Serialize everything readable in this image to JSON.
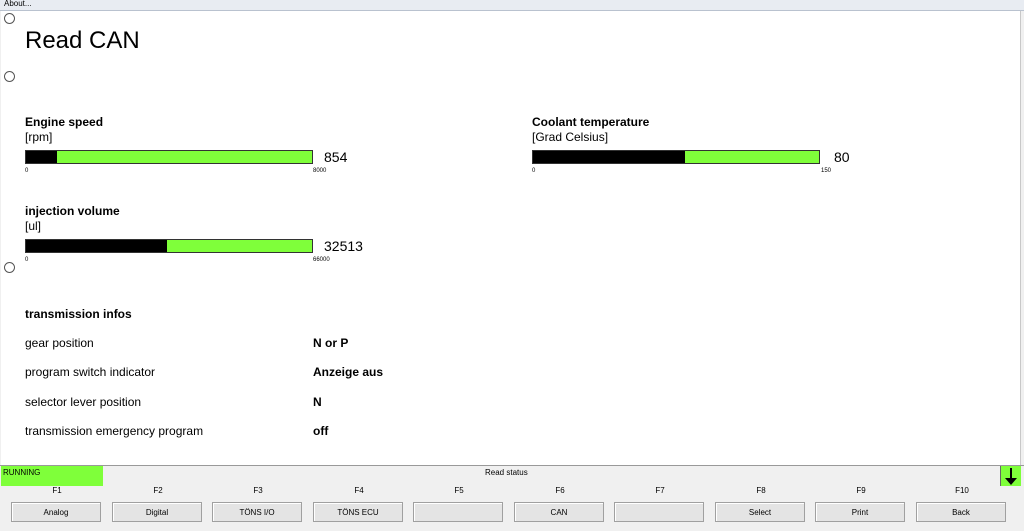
{
  "menubar": {
    "about": "About..."
  },
  "page_title": "Read CAN",
  "gauges": {
    "engine_speed": {
      "label": "Engine speed",
      "unit": "[rpm]",
      "value": "854",
      "min": "0",
      "max": "8000",
      "fill_fraction": 0.107
    },
    "coolant": {
      "label": "Coolant temperature",
      "unit": "[Grad Celsius]",
      "value": "80",
      "min": "0",
      "max": "150",
      "fill_fraction": 0.533
    },
    "injection": {
      "label": "injection volume",
      "unit": "[ul]",
      "value": "32513",
      "min": "0",
      "max": "66000",
      "fill_fraction": 0.493
    }
  },
  "transmission": {
    "title": "transmission infos",
    "rows": [
      {
        "label": "gear position",
        "value": "N or P"
      },
      {
        "label": "program switch indicator",
        "value": "Anzeige aus"
      },
      {
        "label": "selector lever position",
        "value": "N"
      },
      {
        "label": "transmission emergency program",
        "value": "off"
      }
    ]
  },
  "status": {
    "running": "RUNNING",
    "center": "Read status"
  },
  "fkeys": [
    {
      "key": "F1",
      "label": "Analog"
    },
    {
      "key": "F2",
      "label": "Digital"
    },
    {
      "key": "F3",
      "label": "TÖNS I/O"
    },
    {
      "key": "F4",
      "label": "TÖNS ECU"
    },
    {
      "key": "F5",
      "label": ""
    },
    {
      "key": "F6",
      "label": "CAN"
    },
    {
      "key": "F7",
      "label": ""
    },
    {
      "key": "F8",
      "label": "Select"
    },
    {
      "key": "F9",
      "label": "Print"
    },
    {
      "key": "F10",
      "label": "Back"
    }
  ],
  "colors": {
    "bar_green": "#7fff3a",
    "bar_fill": "#000000"
  }
}
